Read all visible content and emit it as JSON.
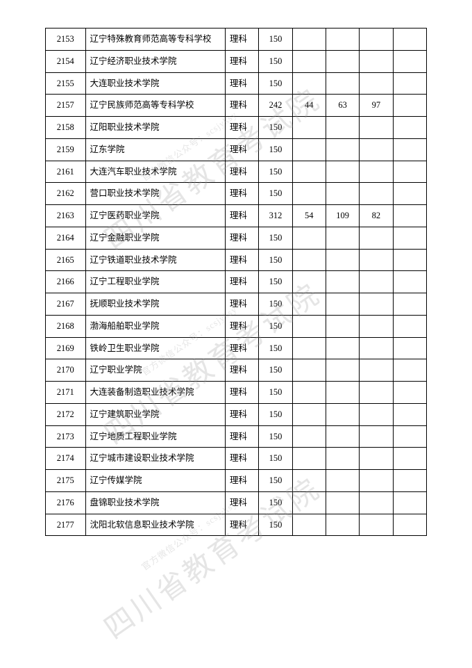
{
  "watermark": {
    "main_text": "四川省教育考试院",
    "sub_text": "官方微信公众号：scsjyksy",
    "main_color": "rgba(150,150,150,0.25)",
    "sub_color": "rgba(150,150,150,0.25)"
  },
  "table": {
    "border_color": "#000000",
    "text_color": "#000000",
    "font_size_pt": 9,
    "columns": [
      "code",
      "name",
      "type",
      "v1",
      "v2",
      "v3",
      "v4",
      "v5"
    ],
    "rows": [
      {
        "code": "2153",
        "name": "辽宁特殊教育师范高等专科学校",
        "type": "理科",
        "v1": "150",
        "v2": "",
        "v3": "",
        "v4": "",
        "v5": ""
      },
      {
        "code": "2154",
        "name": "辽宁经济职业技术学院",
        "type": "理科",
        "v1": "150",
        "v2": "",
        "v3": "",
        "v4": "",
        "v5": ""
      },
      {
        "code": "2155",
        "name": "大连职业技术学院",
        "type": "理科",
        "v1": "150",
        "v2": "",
        "v3": "",
        "v4": "",
        "v5": ""
      },
      {
        "code": "2157",
        "name": "辽宁民族师范高等专科学校",
        "type": "理科",
        "v1": "242",
        "v2": "44",
        "v3": "63",
        "v4": "97",
        "v5": ""
      },
      {
        "code": "2158",
        "name": "辽阳职业技术学院",
        "type": "理科",
        "v1": "150",
        "v2": "",
        "v3": "",
        "v4": "",
        "v5": ""
      },
      {
        "code": "2159",
        "name": "辽东学院",
        "type": "理科",
        "v1": "150",
        "v2": "",
        "v3": "",
        "v4": "",
        "v5": ""
      },
      {
        "code": "2161",
        "name": "大连汽车职业技术学院",
        "type": "理科",
        "v1": "150",
        "v2": "",
        "v3": "",
        "v4": "",
        "v5": ""
      },
      {
        "code": "2162",
        "name": "营口职业技术学院",
        "type": "理科",
        "v1": "150",
        "v2": "",
        "v3": "",
        "v4": "",
        "v5": ""
      },
      {
        "code": "2163",
        "name": "辽宁医药职业学院",
        "type": "理科",
        "v1": "312",
        "v2": "54",
        "v3": "109",
        "v4": "82",
        "v5": ""
      },
      {
        "code": "2164",
        "name": "辽宁金融职业学院",
        "type": "理科",
        "v1": "150",
        "v2": "",
        "v3": "",
        "v4": "",
        "v5": ""
      },
      {
        "code": "2165",
        "name": "辽宁铁道职业技术学院",
        "type": "理科",
        "v1": "150",
        "v2": "",
        "v3": "",
        "v4": "",
        "v5": ""
      },
      {
        "code": "2166",
        "name": "辽宁工程职业学院",
        "type": "理科",
        "v1": "150",
        "v2": "",
        "v3": "",
        "v4": "",
        "v5": ""
      },
      {
        "code": "2167",
        "name": "抚顺职业技术学院",
        "type": "理科",
        "v1": "150",
        "v2": "",
        "v3": "",
        "v4": "",
        "v5": ""
      },
      {
        "code": "2168",
        "name": "渤海船舶职业学院",
        "type": "理科",
        "v1": "150",
        "v2": "",
        "v3": "",
        "v4": "",
        "v5": ""
      },
      {
        "code": "2169",
        "name": "铁岭卫生职业学院",
        "type": "理科",
        "v1": "150",
        "v2": "",
        "v3": "",
        "v4": "",
        "v5": ""
      },
      {
        "code": "2170",
        "name": "辽宁职业学院",
        "type": "理科",
        "v1": "150",
        "v2": "",
        "v3": "",
        "v4": "",
        "v5": ""
      },
      {
        "code": "2171",
        "name": "大连装备制造职业技术学院",
        "type": "理科",
        "v1": "150",
        "v2": "",
        "v3": "",
        "v4": "",
        "v5": ""
      },
      {
        "code": "2172",
        "name": "辽宁建筑职业学院",
        "type": "理科",
        "v1": "150",
        "v2": "",
        "v3": "",
        "v4": "",
        "v5": ""
      },
      {
        "code": "2173",
        "name": "辽宁地质工程职业学院",
        "type": "理科",
        "v1": "150",
        "v2": "",
        "v3": "",
        "v4": "",
        "v5": ""
      },
      {
        "code": "2174",
        "name": "辽宁城市建设职业技术学院",
        "type": "理科",
        "v1": "150",
        "v2": "",
        "v3": "",
        "v4": "",
        "v5": ""
      },
      {
        "code": "2175",
        "name": "辽宁传媒学院",
        "type": "理科",
        "v1": "150",
        "v2": "",
        "v3": "",
        "v4": "",
        "v5": ""
      },
      {
        "code": "2176",
        "name": "盘锦职业技术学院",
        "type": "理科",
        "v1": "150",
        "v2": "",
        "v3": "",
        "v4": "",
        "v5": ""
      },
      {
        "code": "2177",
        "name": "沈阳北软信息职业技术学院",
        "type": "理科",
        "v1": "150",
        "v2": "",
        "v3": "",
        "v4": "",
        "v5": ""
      }
    ]
  }
}
